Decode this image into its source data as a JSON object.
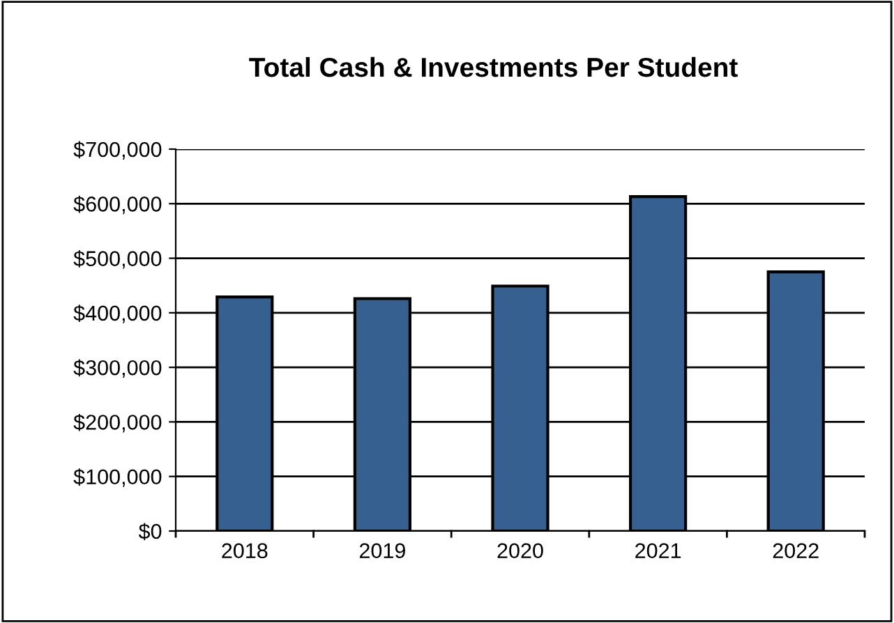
{
  "chart_data": {
    "type": "bar",
    "title": "Total Cash & Investments Per Student",
    "categories": [
      "2018",
      "2019",
      "2020",
      "2021",
      "2022"
    ],
    "values": [
      429000,
      426000,
      449000,
      613000,
      475000
    ],
    "color": "#36608f",
    "ylim": [
      0,
      700000
    ],
    "yticks": [
      {
        "value": 0,
        "label": "$0"
      },
      {
        "value": 100000,
        "label": "$100,000"
      },
      {
        "value": 200000,
        "label": "$200,000"
      },
      {
        "value": 300000,
        "label": "$300,000"
      },
      {
        "value": 400000,
        "label": "$400,000"
      },
      {
        "value": 500000,
        "label": "$500,000"
      },
      {
        "value": 600000,
        "label": "$600,000"
      },
      {
        "value": 700000,
        "label": "$700,000"
      }
    ],
    "grid": "y",
    "legend": false
  }
}
